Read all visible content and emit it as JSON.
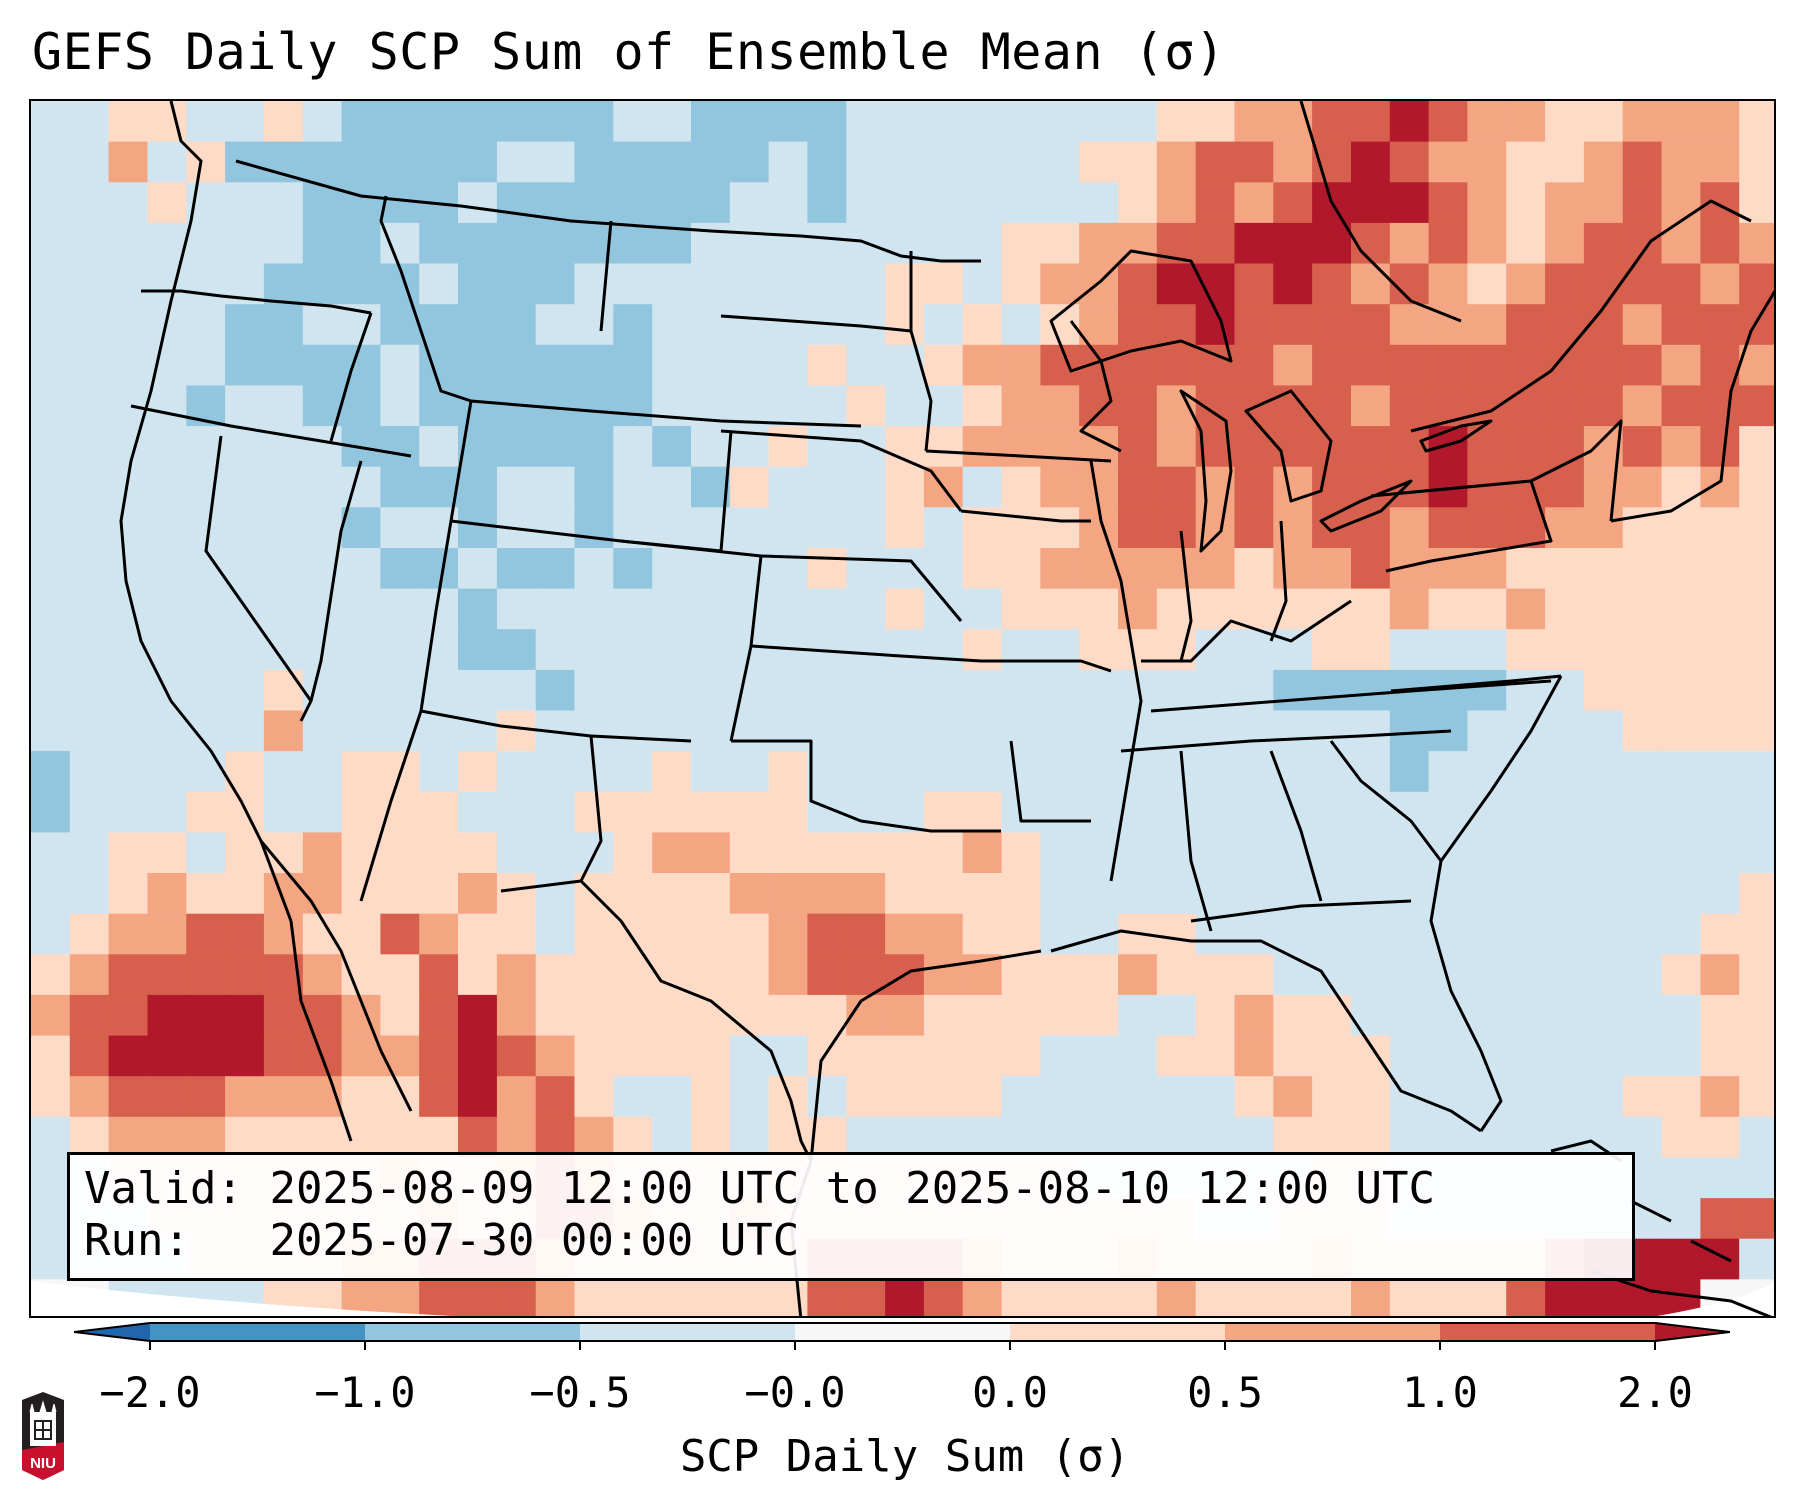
{
  "title": "GEFS Daily SCP Sum of Ensemble Mean (σ)",
  "info": {
    "valid_label": "Valid:",
    "valid_value": "2025-08-09 12:00 UTC to 2025-08-10 12:00 UTC",
    "run_label": "Run:",
    "run_value": "2025-07-30 00:00 UTC"
  },
  "logo": {
    "text": "NIU",
    "colors": {
      "shield": "#231f20",
      "band": "#c8102e"
    }
  },
  "chart_data": {
    "type": "heatmap",
    "title": "GEFS Daily SCP Sum of Ensemble Mean (σ)",
    "region": "Continental United States",
    "variable": "SCP Daily Sum",
    "units": "σ",
    "colorbar": {
      "label": "SCP Daily Sum (σ)",
      "extend": "both",
      "levels": [
        -2.0,
        -1.0,
        -0.5,
        -0.0,
        0.0,
        0.5,
        1.0,
        2.0
      ],
      "tick_labels": [
        "−2.0",
        "−1.0",
        "−0.5",
        "−0.0",
        "0.0",
        "0.5",
        "1.0",
        "2.0"
      ],
      "bins": [
        {
          "key": "A",
          "range": "< -2.0",
          "color": "#2166ac"
        },
        {
          "key": "B",
          "range": "-2.0 to -1.0",
          "color": "#4393c3"
        },
        {
          "key": "C",
          "range": "-1.0 to -0.5",
          "color": "#92c5de"
        },
        {
          "key": "D",
          "range": "-0.5 to -0.0",
          "color": "#d1e5f0"
        },
        {
          "key": "E",
          "range": "-0.0 to 0.0",
          "color": "#f7f7f7"
        },
        {
          "key": "F",
          "range": "0.0 to 0.5",
          "color": "#fddbc7"
        },
        {
          "key": "G",
          "range": "0.5 to 1.0",
          "color": "#f4a582"
        },
        {
          "key": "H",
          "range": "1.0 to 2.0",
          "color": "#d6604d"
        },
        {
          "key": "I",
          "range": "> 2.0",
          "color": "#b2182b"
        }
      ]
    },
    "grid_note": "approximate binned field, rows north to south, columns west to east",
    "field": [
      "DDFFDDFDCCCCCCCDDCCCCDDDDDDDDFFGGHHIHGGFFGGGF",
      "DDGDFCCCCCCCDDCCCCCDCDDDDDDFFGHHGHIHGGFFGHGGF",
      "DDDFDDDCCCCDCCCCCCDDCDDDDDDDFGHGHIIIHGFGGHGHF",
      "DDDDDDDCCDCCCCCCCDDDDDDDDFFGGHHIIIHGHGFGHHGHG",
      "DDDDDDCCCCDCCCDDDDDDDDFFDFGGHIIHIHGHGFGHHHHGH",
      "DDDDDCCDDCCCCDDCDDDDDDFDFDFGHHIHHHHGGGHHHGHHH",
      "DDDDDCCCCDCCCCCCDDDDFDDFGGHHHHHHGHHHHHHHHHGHG",
      "DDDDCDDCCDCCCCCCDDDDDFDDFGGHHGHHHHGHHHHHHGHHH",
      "DDDDDDDDCCDCCCCDCDDFDDFFGGGGHGHHHHHHIHHHGHGHF",
      "DDDDDDDDDCCCDDCDDCFDDDFGDFGGHHGHGHHHIHHHGGFGF",
      "DDDDDDDDCDDCDDCDDDDDDDFDFFFGHHGHGHHGHHHGGFFFF",
      "DDDDDDDDDCCDCCDCDDDDFDDDFFGGGGGFGGHGGGFFFFFFF",
      "DDDDDDDDDDDCDDDDDDDDDDFDDFFFGFFFFFFGFFGFFFFFF",
      "DDDDDDDDDDDCCDDDDDDDDDDDFDDFFFDDDFFDDDFFFFFFF",
      "DDDDDDFDDDDDDCDDDDDDDDDDDDDDDDDDCCCCCCDDFFFFF",
      "DDDDDDGDDDDDFDDDDDDDDDDDDDDDDDDDDDDCCDDDDFFFF",
      "CDDDDFDDFFDFDDDDFDDFDDDDDDDDDDDDDDDCDDDDDDDDD",
      "CDDDFFDDFFFDDDFFFFFFDDDFFDDDDDDDDDDDDDDDDDDDD",
      "DDFFDFFGFFFFDDDFGGFFFFFFGFDDDDDDDDDDDDDDDDDDD",
      "DDFGFFGGFFFGFDFFFFGGGGFFFFDDDDDDDDDDDDDDDDDDF",
      "DFGGHHGFFHGFFDFFFFFGHHGGFFDDFFDDDDDDDDDDDDDFF",
      "FGHHHHHGFFHFGFFFFFFGHHHGGFFFGFFFDDDDDDDDDDFGF",
      "GHHIIIHHGFHIGFFFFFFFFGGFFFFFDDFGFFDDDDDDDDDFF",
      "FHIIIIHHGGHIHGFFFFDDFFFFFFDDDFFGFFFDDDDDDDDFF",
      "FGHHHGGGFFHIGHFDDFDFDFFFFDDDDDDFGFFDDDDDDFFGF",
      "DFGGGFFFFFFHGHGFDFDFFDDDDDDDDDDDFFFDDDDDDDFFD",
      "DDFFFFFFFGFFGHGFFFFFFFFFFFFDDDDDDFFDDDDDDDDDD",
      "DDDFFFFFFFGFFHHGFFGFFFFFFFFFFFDDFFFDDDDDDDDHH",
      "DDDDFFFFGGHHHGFFFFFFHHHHGFFFGFFFFGFFFFFHIIIID",
      "EEDDDDFFGGHHHGFFFFFFHHIHGFFFFGFFFFGFFFHIIIIEE"
    ]
  }
}
